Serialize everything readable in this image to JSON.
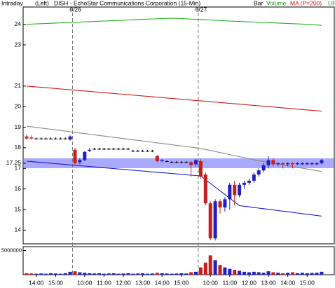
{
  "chart_data": {
    "type": "candlestick",
    "mode": "Intraday",
    "axis_side": "(Left)",
    "title": "DISH - EchoStar Communications Corporation (15-Min)",
    "legend": [
      {
        "label": "Bar",
        "color": "#000000"
      },
      {
        "label": "Volume",
        "color": "#1a9a1a"
      },
      {
        "label": "MA (P=200)",
        "color": "#d01010"
      },
      {
        "label": "UP",
        "color": "#1a9a1a"
      }
    ],
    "up_color": "#2020c0",
    "down_color": "#c81e1e",
    "categories": [
      null,
      null,
      "14:00",
      null,
      null,
      null,
      "15:00",
      null,
      null,
      null,
      null,
      null,
      "10:00",
      null,
      null,
      null,
      "11:00",
      null,
      null,
      null,
      "12:00",
      null,
      null,
      null,
      "13:00",
      null,
      null,
      null,
      "14:00",
      null,
      null,
      null,
      "15:00",
      null,
      null,
      null,
      null,
      null,
      "10:00",
      null,
      null,
      null,
      "11:00",
      null,
      null,
      null,
      "12:00",
      null,
      null,
      null,
      "13:00",
      null,
      null,
      null,
      "14:00",
      null,
      null,
      null,
      "15:00",
      null,
      null,
      null
    ],
    "open": [
      18.55,
      18.5,
      18.45,
      18.45,
      18.45,
      18.45,
      18.45,
      18.45,
      18.45,
      18.4,
      17.9,
      17.3,
      17.4,
      17.85,
      17.95,
      17.95,
      17.95,
      17.95,
      17.95,
      17.95,
      17.95,
      17.95,
      17.85,
      17.85,
      17.85,
      17.85,
      17.85,
      17.6,
      17.35,
      17.35,
      17.3,
      17.3,
      17.3,
      17.3,
      17.3,
      17.2,
      17.35,
      16.7,
      15.3,
      13.6,
      15.4,
      15.1,
      15.5,
      16.2,
      15.7,
      16.2,
      16.3,
      16.4,
      16.7,
      16.9,
      17.15,
      17.4,
      17.2,
      17.25,
      17.2,
      17.25,
      17.2,
      17.2,
      17.2,
      17.2,
      17.2,
      17.25
    ],
    "high": [
      18.65,
      18.6,
      18.5,
      18.5,
      18.5,
      18.5,
      18.5,
      18.5,
      18.5,
      18.6,
      18.0,
      17.5,
      17.85,
      18.0,
      18.0,
      18.0,
      18.0,
      18.0,
      18.0,
      18.0,
      18.0,
      18.0,
      17.9,
      17.9,
      17.9,
      17.9,
      17.9,
      17.65,
      17.45,
      17.4,
      17.35,
      17.35,
      17.35,
      17.35,
      17.35,
      17.45,
      17.45,
      16.8,
      15.4,
      15.5,
      15.5,
      15.6,
      16.3,
      16.4,
      16.3,
      16.4,
      16.5,
      16.8,
      17.0,
      17.25,
      17.6,
      17.5,
      17.3,
      17.3,
      17.3,
      17.3,
      17.3,
      17.3,
      17.3,
      17.3,
      17.3,
      17.45
    ],
    "low": [
      18.4,
      18.4,
      18.4,
      18.4,
      18.4,
      18.4,
      18.4,
      18.4,
      18.4,
      18.35,
      17.2,
      17.2,
      17.35,
      17.8,
      17.9,
      17.9,
      17.9,
      17.9,
      17.9,
      17.9,
      17.9,
      17.9,
      17.8,
      17.8,
      17.8,
      17.8,
      17.8,
      17.3,
      17.3,
      17.3,
      17.25,
      17.25,
      17.25,
      17.25,
      16.6,
      17.1,
      16.5,
      15.2,
      13.5,
      13.5,
      14.8,
      14.9,
      15.0,
      15.2,
      15.6,
      16.0,
      16.2,
      16.3,
      16.6,
      16.8,
      17.0,
      17.1,
      17.1,
      17.0,
      17.1,
      17.0,
      17.15,
      17.15,
      17.15,
      17.15,
      17.15,
      17.2
    ],
    "close": [
      18.45,
      18.45,
      18.45,
      18.45,
      18.45,
      18.45,
      18.45,
      18.45,
      18.45,
      18.55,
      17.25,
      17.4,
      17.8,
      17.9,
      17.95,
      17.95,
      17.95,
      17.95,
      17.95,
      17.95,
      17.95,
      17.95,
      17.85,
      17.85,
      17.85,
      17.85,
      17.85,
      17.35,
      17.4,
      17.35,
      17.3,
      17.3,
      17.3,
      17.3,
      17.15,
      17.4,
      16.6,
      15.3,
      13.6,
      15.4,
      15.1,
      15.5,
      16.2,
      15.7,
      16.2,
      16.3,
      16.4,
      16.7,
      16.9,
      17.15,
      17.4,
      17.2,
      17.25,
      17.2,
      17.25,
      17.2,
      17.25,
      17.25,
      17.25,
      17.25,
      17.25,
      17.4
    ],
    "ma": [
      {
        "color": "#20b020",
        "values": [
          24.0,
          24.01,
          24.02,
          24.03,
          24.04,
          24.05,
          24.06,
          24.07,
          24.08,
          24.09,
          24.1,
          24.11,
          24.12,
          24.13,
          24.14,
          24.15,
          24.16,
          24.17,
          24.18,
          24.19,
          24.2,
          24.21,
          24.22,
          24.23,
          24.24,
          24.25,
          24.26,
          24.27,
          24.28,
          24.29,
          24.3,
          24.29,
          24.28,
          24.27,
          24.25,
          24.24,
          24.23,
          24.22,
          24.21,
          24.2,
          24.19,
          24.17,
          24.16,
          24.15,
          24.14,
          24.13,
          24.12,
          24.11,
          24.1,
          24.09,
          24.08,
          24.07,
          24.06,
          24.05,
          24.04,
          24.03,
          24.02,
          24.01,
          24.0,
          23.98,
          23.97,
          23.95
        ]
      },
      {
        "color": "#d01818",
        "values": [
          21.0,
          20.98,
          20.96,
          20.94,
          20.92,
          20.9,
          20.88,
          20.86,
          20.84,
          20.82,
          20.8,
          20.78,
          20.76,
          20.74,
          20.72,
          20.7,
          20.68,
          20.66,
          20.64,
          20.62,
          20.6,
          20.58,
          20.56,
          20.54,
          20.52,
          20.5,
          20.48,
          20.46,
          20.44,
          20.42,
          20.4,
          20.38,
          20.36,
          20.34,
          20.32,
          20.3,
          20.28,
          20.26,
          20.24,
          20.22,
          20.2,
          20.18,
          20.16,
          20.14,
          20.12,
          20.1,
          20.08,
          20.06,
          20.04,
          20.02,
          20.0,
          19.98,
          19.96,
          19.94,
          19.92,
          19.9,
          19.88,
          19.86,
          19.84,
          19.82,
          19.8,
          19.78
        ]
      },
      {
        "color": "#8a8a8a",
        "values": [
          19.05,
          19.02,
          18.99,
          18.96,
          18.93,
          18.9,
          18.87,
          18.84,
          18.81,
          18.78,
          18.75,
          18.72,
          18.69,
          18.66,
          18.63,
          18.6,
          18.57,
          18.54,
          18.51,
          18.48,
          18.45,
          18.42,
          18.39,
          18.36,
          18.33,
          18.3,
          18.27,
          18.24,
          18.21,
          18.18,
          18.15,
          18.12,
          18.09,
          18.06,
          18.03,
          18.0,
          17.97,
          17.92,
          17.87,
          17.82,
          17.77,
          17.72,
          17.67,
          17.62,
          17.57,
          17.52,
          17.47,
          17.42,
          17.37,
          17.33,
          17.29,
          17.25,
          17.21,
          17.17,
          17.13,
          17.09,
          17.05,
          17.01,
          16.97,
          16.93,
          16.89,
          16.85
        ]
      },
      {
        "color": "#1a1ad0",
        "values": [
          17.35,
          17.33,
          17.31,
          17.29,
          17.27,
          17.25,
          17.23,
          17.21,
          17.19,
          17.17,
          17.15,
          17.13,
          17.11,
          17.09,
          17.07,
          17.05,
          17.03,
          17.01,
          16.99,
          16.97,
          16.95,
          16.93,
          16.91,
          16.89,
          16.87,
          16.85,
          16.83,
          16.81,
          16.79,
          16.77,
          16.75,
          16.73,
          16.71,
          16.69,
          16.67,
          16.65,
          16.63,
          16.45,
          16.27,
          16.09,
          15.91,
          15.73,
          15.55,
          15.37,
          15.19,
          15.16,
          15.13,
          15.1,
          15.07,
          15.04,
          15.01,
          14.98,
          14.95,
          14.92,
          14.89,
          14.86,
          14.83,
          14.8,
          14.77,
          14.74,
          14.71,
          14.68
        ]
      }
    ],
    "ylim": [
      13.4,
      24.5
    ],
    "yticks": [
      24,
      23,
      21,
      20,
      19,
      18,
      17.25,
      17,
      16,
      15,
      14
    ],
    "highlight": {
      "value": 17.25,
      "color": "#8c8cff"
    },
    "annotations": [
      {
        "text": "6/26",
        "at": 10
      },
      {
        "text": "6/27",
        "at": 36
      }
    ],
    "volume": {
      "values": [
        300000,
        250000,
        200000,
        250000,
        200000,
        300000,
        250000,
        200000,
        300000,
        600000,
        700000,
        500000,
        400000,
        300000,
        250000,
        300000,
        200000,
        250000,
        300000,
        200000,
        250000,
        300000,
        200000,
        250000,
        300000,
        200000,
        250000,
        400000,
        300000,
        250000,
        200000,
        250000,
        300000,
        250000,
        500000,
        600000,
        1500000,
        2500000,
        4000000,
        3000000,
        2000000,
        1500000,
        1200000,
        1000000,
        800000,
        600000,
        500000,
        600000,
        500000,
        400000,
        700000,
        500000,
        400000,
        300000,
        400000,
        500000,
        300000,
        400000,
        300000,
        350000,
        400000,
        600000
      ],
      "ylim": [
        0,
        5800000
      ],
      "yticks": [
        5000000
      ]
    }
  }
}
